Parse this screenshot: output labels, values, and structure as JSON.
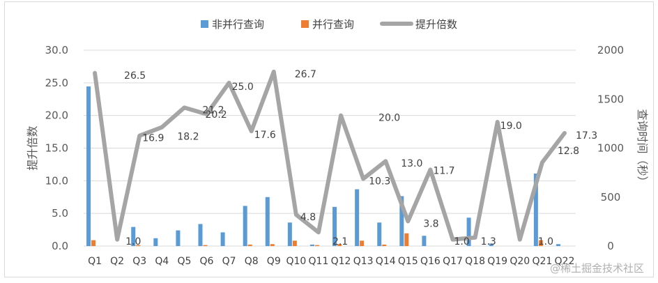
{
  "chart_data": {
    "type": "bar+line",
    "categories": [
      "Q1",
      "Q2",
      "Q3",
      "Q4",
      "Q5",
      "Q6",
      "Q7",
      "Q8",
      "Q9",
      "Q10",
      "Q11",
      "Q12",
      "Q13",
      "Q14",
      "Q15",
      "Q16",
      "Q17",
      "Q18",
      "Q19",
      "Q20",
      "Q21",
      "Q22"
    ],
    "series": [
      {
        "name": "非并行查询",
        "kind": "bar",
        "axis": "right",
        "color": "#5b9bd5",
        "values": [
          1630,
          0,
          195,
          80,
          160,
          225,
          140,
          410,
          500,
          240,
          15,
          400,
          580,
          240,
          510,
          105,
          0,
          290,
          25,
          0,
          740,
          20
        ]
      },
      {
        "name": "并行查询",
        "kind": "bar",
        "axis": "right",
        "color": "#ed7d31",
        "values": [
          60,
          0,
          10,
          0,
          0,
          10,
          0,
          15,
          20,
          55,
          10,
          20,
          55,
          15,
          130,
          0,
          0,
          0,
          0,
          0,
          60,
          0
        ]
      },
      {
        "name": "提升倍数",
        "kind": "line",
        "axis": "left",
        "color": "#a5a5a5",
        "values": [
          26.5,
          1.0,
          16.9,
          18.2,
          21.2,
          20.2,
          25.0,
          17.6,
          26.7,
          4.8,
          2.1,
          20.0,
          10.3,
          13.0,
          3.8,
          11.7,
          1.0,
          1.3,
          19.0,
          1.0,
          12.8,
          17.3
        ],
        "labels": [
          "26.5",
          "1.0",
          "16.9",
          "18.2",
          "21.2",
          "20.2",
          "25.0",
          "17.6",
          "26.7",
          "4.8",
          "2.1",
          "20.0",
          "10.3",
          "13.0",
          "3.8",
          "11.7",
          "1.0",
          "1.3",
          "19.0",
          "1.0",
          "12.8",
          "17.3"
        ]
      }
    ],
    "y_left": {
      "label": "提升倍数",
      "lim": [
        0,
        30
      ],
      "ticks": [
        "0.0",
        "5.0",
        "10.0",
        "15.0",
        "20.0",
        "25.0",
        "30.0"
      ]
    },
    "y_right": {
      "label": "查询时间（秒）",
      "lim": [
        0,
        2000
      ],
      "ticks": [
        "0",
        "500",
        "1000",
        "1500",
        "2000"
      ]
    },
    "grid": true,
    "legend": "top-center"
  },
  "watermark": "@稀土掘金技术社区"
}
